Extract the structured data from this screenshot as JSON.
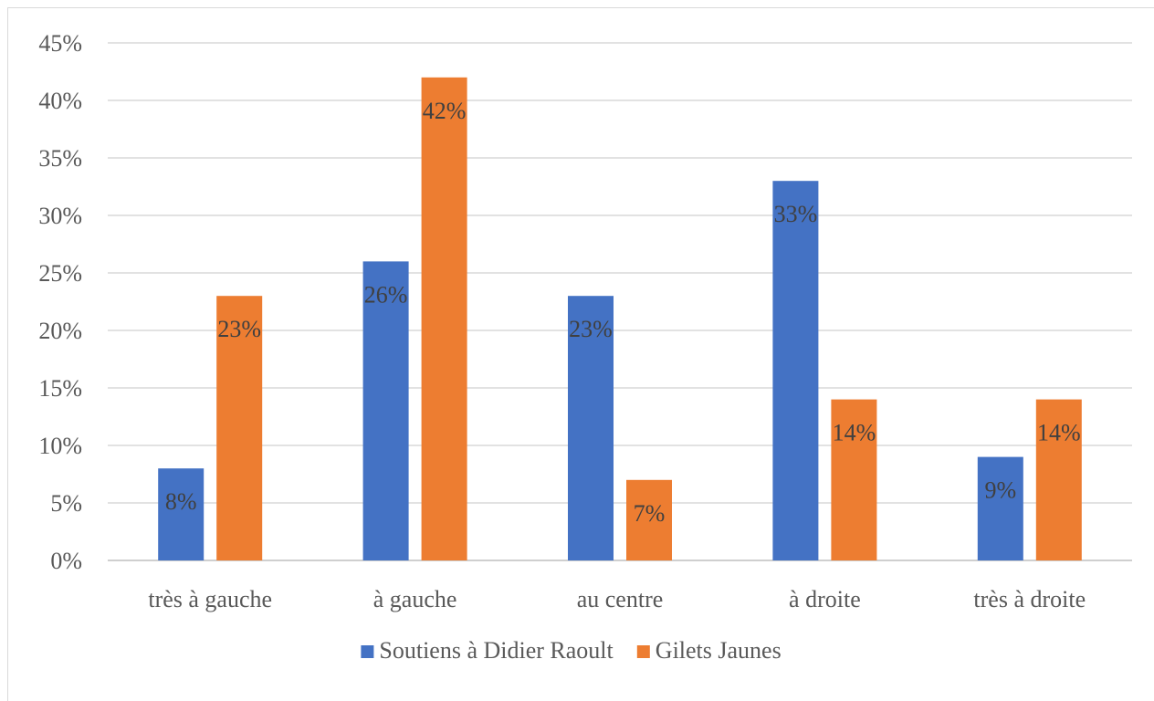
{
  "chart_data": {
    "type": "bar",
    "title": "",
    "xlabel": "",
    "ylabel": "",
    "ylim": [
      0,
      45
    ],
    "ytick_step": 5,
    "ytick_format": "percent",
    "grid": true,
    "legend_position": "bottom",
    "categories": [
      "très à gauche",
      "à gauche",
      "au centre",
      "à droite",
      "très à droite"
    ],
    "series": [
      {
        "name": "Soutiens à Didier Raoult",
        "color": "#4472c4",
        "values": [
          8,
          26,
          23,
          33,
          9
        ],
        "labels": [
          "8%",
          "26%",
          "23%",
          "33%",
          "9%"
        ]
      },
      {
        "name": "Gilets Jaunes",
        "color": "#ed7d31",
        "values": [
          23,
          42,
          7,
          14,
          14
        ],
        "labels": [
          "23%",
          "42%",
          "7%",
          "14%",
          "14%"
        ]
      }
    ]
  }
}
